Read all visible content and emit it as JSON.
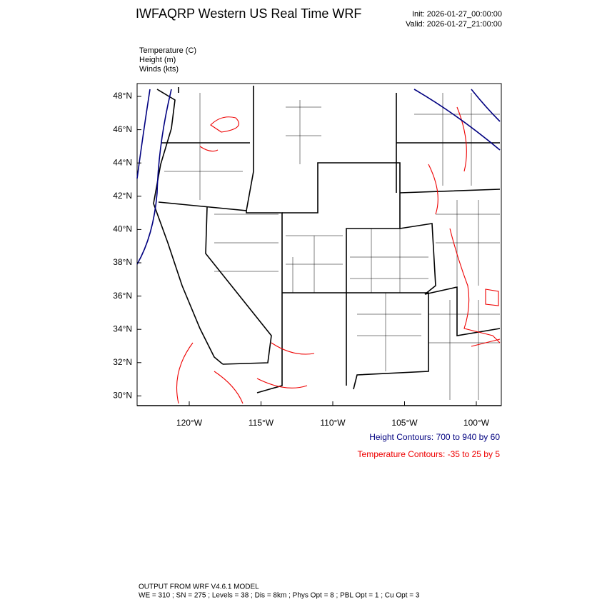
{
  "header": {
    "title": "IWFAQRP Western US Real Time WRF",
    "init": "Init: 2026-01-27_00:00:00",
    "valid": "Valid: 2026-01-27_21:00:00"
  },
  "fields": [
    "Temperature   (C)",
    "Height   (m)",
    "Winds   (kts)"
  ],
  "lat_labels": [
    "48°N",
    "46°N",
    "44°N",
    "42°N",
    "40°N",
    "38°N",
    "36°N",
    "34°N",
    "32°N",
    "30°N"
  ],
  "lon_labels": [
    "120°W",
    "115°W",
    "110°W",
    "105°W",
    "100°W"
  ],
  "legend": {
    "height": "Height Contours: 700 to 940 by 60",
    "temperature": "Temperature Contours: -35 to 25 by 5"
  },
  "footer": {
    "model": "OUTPUT FROM WRF V4.6.1 MODEL",
    "config": "WE = 310 ; SN = 275 ; Levels = 38 ; Dis = 8km ; Phys Opt = 8 ; PBL Opt = 1 ; Cu Opt = 3"
  }
}
